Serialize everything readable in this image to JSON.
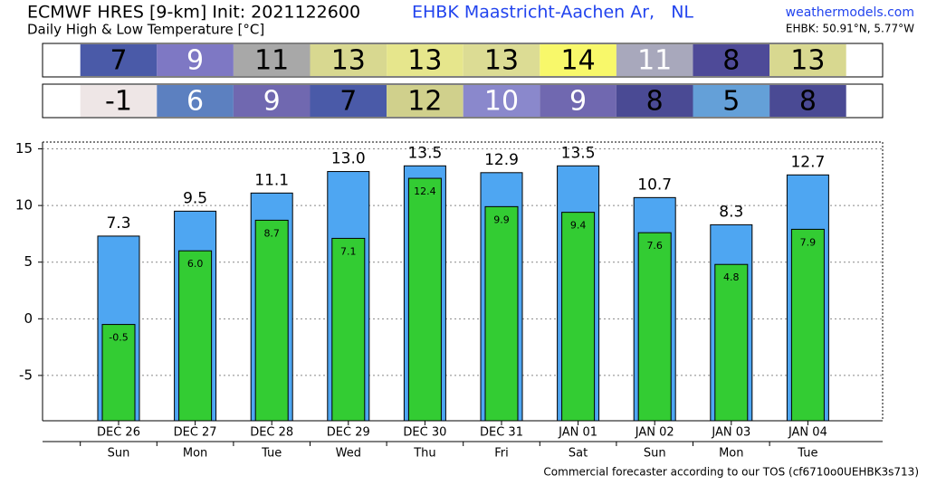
{
  "chart_data": {
    "type": "bar",
    "title": "ECMWF HRES [9-km] Init: 2021122600",
    "subtitle": "Daily High & Low Temperature [°C]",
    "location": "EHBK Maastricht-Aachen Ar,   NL",
    "site": "weathermodels.com",
    "coords": "EHBK: 50.91°N, 5.77°W",
    "footer": "Commercial forecaster according to our TOS (cf6710o0UEHBK3s713)",
    "high_table": {
      "values": [
        7,
        9,
        11,
        13,
        13,
        13,
        14,
        11,
        8,
        13
      ],
      "colors": [
        "#4a5aa8",
        "#7e78c4",
        "#a8a8a8",
        "#d8d890",
        "#e6e68c",
        "#dcdc94",
        "#f8f86a",
        "#a8a8bc",
        "#4e4a98",
        "#d8d890"
      ]
    },
    "low_table": {
      "values": [
        -1,
        6,
        9,
        7,
        12,
        10,
        9,
        8,
        5,
        8
      ],
      "colors": [
        "#eee6e6",
        "#5c80c0",
        "#7068b0",
        "#4a5aa8",
        "#d0d08c",
        "#8a88cc",
        "#7068b0",
        "#4a4a94",
        "#64a0d8",
        "#4a4a94"
      ]
    },
    "categories": [
      "DEC 26",
      "DEC 27",
      "DEC 28",
      "DEC 29",
      "DEC 30",
      "DEC 31",
      "JAN 01",
      "JAN 02",
      "JAN 03",
      "JAN 04"
    ],
    "weekdays": [
      "Sun",
      "Mon",
      "Tue",
      "Wed",
      "Thu",
      "Fri",
      "Sat",
      "Sun",
      "Mon",
      "Tue"
    ],
    "series": [
      {
        "name": "High",
        "color": "#4ea6f2",
        "values": [
          7.3,
          9.5,
          11.1,
          13.0,
          13.5,
          12.9,
          13.5,
          10.7,
          8.3,
          12.7
        ],
        "value_labels": [
          "7.3",
          "9.5",
          "11.1",
          "13.0",
          "13.5",
          "12.9",
          "13.5",
          "10.7",
          "8.3",
          "12.7"
        ]
      },
      {
        "name": "Low",
        "color": "#33cc33",
        "values": [
          -0.5,
          6.0,
          8.7,
          7.1,
          12.4,
          9.9,
          9.4,
          7.6,
          4.8,
          7.9
        ],
        "value_labels": [
          "-0.5",
          "6.0",
          "8.7",
          "7.1",
          "12.4",
          "9.9",
          "9.4",
          "7.6",
          "4.8",
          "7.9"
        ]
      }
    ],
    "ylim": [
      -9,
      15.6
    ],
    "yticks": [
      -5,
      0,
      5,
      10,
      15
    ],
    "grid": true
  }
}
